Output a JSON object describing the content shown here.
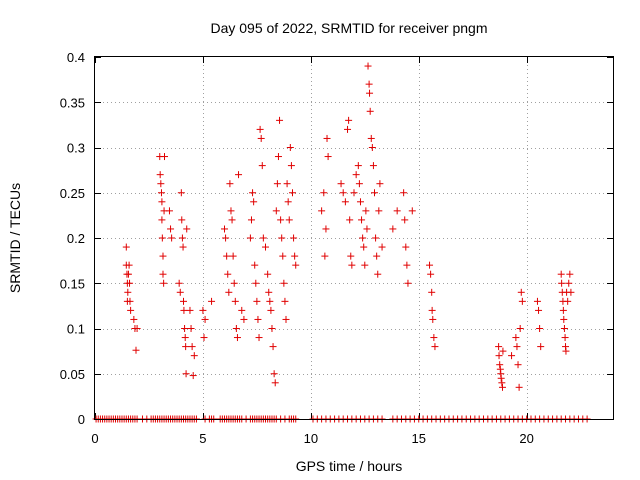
{
  "chart_data": {
    "type": "scatter",
    "title": "Day 095 of 2022, SRMTID for receiver pngm",
    "xlabel": "GPS time / hours",
    "ylabel": "SRMTID / TECUs",
    "xlim": [
      0,
      24
    ],
    "ylim": [
      0,
      0.4
    ],
    "xticks": [
      0,
      5,
      10,
      15,
      20
    ],
    "xtick_labels": [
      "0",
      "5",
      "10",
      "15",
      "20"
    ],
    "yticks": [
      0,
      0.05,
      0.1,
      0.15,
      0.2,
      0.25,
      0.3,
      0.35,
      0.4
    ],
    "ytick_labels": [
      "0",
      "0.05",
      "0.1",
      "0.15",
      "0.2",
      "0.25",
      "0.3",
      "0.35",
      "0.4"
    ],
    "grid": true,
    "marker": "plus",
    "color": "#e00000",
    "series": [
      {
        "name": "SRMTID",
        "points": [
          [
            1.45,
            0.19
          ],
          [
            1.45,
            0.17
          ],
          [
            1.48,
            0.16
          ],
          [
            1.5,
            0.15
          ],
          [
            1.5,
            0.13
          ],
          [
            1.52,
            0.14
          ],
          [
            1.55,
            0.16
          ],
          [
            1.58,
            0.17
          ],
          [
            1.6,
            0.15
          ],
          [
            1.62,
            0.13
          ],
          [
            1.65,
            0.12
          ],
          [
            1.8,
            0.11
          ],
          [
            1.85,
            0.1
          ],
          [
            1.9,
            0.076
          ],
          [
            1.95,
            0.1
          ],
          [
            3.0,
            0.29
          ],
          [
            3.02,
            0.27
          ],
          [
            3.05,
            0.26
          ],
          [
            3.08,
            0.25
          ],
          [
            3.1,
            0.24
          ],
          [
            3.1,
            0.22
          ],
          [
            3.12,
            0.2
          ],
          [
            3.15,
            0.18
          ],
          [
            3.15,
            0.16
          ],
          [
            3.18,
            0.15
          ],
          [
            3.2,
            0.23
          ],
          [
            3.22,
            0.29
          ],
          [
            3.45,
            0.23
          ],
          [
            3.5,
            0.21
          ],
          [
            3.55,
            0.2
          ],
          [
            3.9,
            0.15
          ],
          [
            3.95,
            0.14
          ],
          [
            4.0,
            0.25
          ],
          [
            4.02,
            0.22
          ],
          [
            4.05,
            0.2
          ],
          [
            4.08,
            0.19
          ],
          [
            4.1,
            0.13
          ],
          [
            4.12,
            0.12
          ],
          [
            4.15,
            0.1
          ],
          [
            4.18,
            0.09
          ],
          [
            4.2,
            0.08
          ],
          [
            4.22,
            0.05
          ],
          [
            4.25,
            0.21
          ],
          [
            4.4,
            0.12
          ],
          [
            4.45,
            0.1
          ],
          [
            4.5,
            0.08
          ],
          [
            4.55,
            0.048
          ],
          [
            4.6,
            0.07
          ],
          [
            5.0,
            0.12
          ],
          [
            5.05,
            0.09
          ],
          [
            5.1,
            0.11
          ],
          [
            5.4,
            0.13
          ],
          [
            6.0,
            0.21
          ],
          [
            6.05,
            0.2
          ],
          [
            6.1,
            0.18
          ],
          [
            6.15,
            0.16
          ],
          [
            6.2,
            0.14
          ],
          [
            6.25,
            0.26
          ],
          [
            6.3,
            0.23
          ],
          [
            6.35,
            0.22
          ],
          [
            6.4,
            0.18
          ],
          [
            6.45,
            0.15
          ],
          [
            6.5,
            0.13
          ],
          [
            6.55,
            0.1
          ],
          [
            6.6,
            0.09
          ],
          [
            6.65,
            0.27
          ],
          [
            6.8,
            0.12
          ],
          [
            6.9,
            0.11
          ],
          [
            7.2,
            0.2
          ],
          [
            7.25,
            0.22
          ],
          [
            7.3,
            0.25
          ],
          [
            7.35,
            0.24
          ],
          [
            7.4,
            0.17
          ],
          [
            7.45,
            0.15
          ],
          [
            7.5,
            0.13
          ],
          [
            7.55,
            0.11
          ],
          [
            7.6,
            0.09
          ],
          [
            7.65,
            0.32
          ],
          [
            7.7,
            0.31
          ],
          [
            7.75,
            0.28
          ],
          [
            7.8,
            0.2
          ],
          [
            7.9,
            0.19
          ],
          [
            8.0,
            0.16
          ],
          [
            8.05,
            0.14
          ],
          [
            8.1,
            0.13
          ],
          [
            8.15,
            0.12
          ],
          [
            8.2,
            0.1
          ],
          [
            8.25,
            0.08
          ],
          [
            8.3,
            0.05
          ],
          [
            8.35,
            0.04
          ],
          [
            8.4,
            0.23
          ],
          [
            8.45,
            0.26
          ],
          [
            8.5,
            0.29
          ],
          [
            8.55,
            0.33
          ],
          [
            8.6,
            0.22
          ],
          [
            8.65,
            0.2
          ],
          [
            8.7,
            0.18
          ],
          [
            8.75,
            0.15
          ],
          [
            8.8,
            0.13
          ],
          [
            8.85,
            0.11
          ],
          [
            8.9,
            0.26
          ],
          [
            8.95,
            0.24
          ],
          [
            9.0,
            0.22
          ],
          [
            9.05,
            0.3
          ],
          [
            9.1,
            0.28
          ],
          [
            9.15,
            0.25
          ],
          [
            9.2,
            0.2
          ],
          [
            9.25,
            0.18
          ],
          [
            9.3,
            0.17
          ],
          [
            10.5,
            0.23
          ],
          [
            10.6,
            0.25
          ],
          [
            10.65,
            0.18
          ],
          [
            10.7,
            0.21
          ],
          [
            10.75,
            0.31
          ],
          [
            10.8,
            0.29
          ],
          [
            11.4,
            0.26
          ],
          [
            11.5,
            0.25
          ],
          [
            11.6,
            0.24
          ],
          [
            11.7,
            0.32
          ],
          [
            11.75,
            0.33
          ],
          [
            11.8,
            0.22
          ],
          [
            11.85,
            0.18
          ],
          [
            11.9,
            0.17
          ],
          [
            12.0,
            0.25
          ],
          [
            12.1,
            0.27
          ],
          [
            12.2,
            0.28
          ],
          [
            12.25,
            0.26
          ],
          [
            12.3,
            0.24
          ],
          [
            12.35,
            0.22
          ],
          [
            12.4,
            0.2
          ],
          [
            12.45,
            0.19
          ],
          [
            12.5,
            0.17
          ],
          [
            12.55,
            0.23
          ],
          [
            12.6,
            0.21
          ],
          [
            12.65,
            0.39
          ],
          [
            12.7,
            0.37
          ],
          [
            12.72,
            0.36
          ],
          [
            12.75,
            0.34
          ],
          [
            12.8,
            0.31
          ],
          [
            12.85,
            0.3
          ],
          [
            12.9,
            0.28
          ],
          [
            12.95,
            0.25
          ],
          [
            13.0,
            0.2
          ],
          [
            13.05,
            0.18
          ],
          [
            13.1,
            0.16
          ],
          [
            13.15,
            0.23
          ],
          [
            13.2,
            0.26
          ],
          [
            13.3,
            0.19
          ],
          [
            13.8,
            0.21
          ],
          [
            14.0,
            0.23
          ],
          [
            14.3,
            0.25
          ],
          [
            14.35,
            0.22
          ],
          [
            14.4,
            0.19
          ],
          [
            14.45,
            0.17
          ],
          [
            14.5,
            0.15
          ],
          [
            14.7,
            0.23
          ],
          [
            15.5,
            0.17
          ],
          [
            15.55,
            0.16
          ],
          [
            15.6,
            0.14
          ],
          [
            15.62,
            0.12
          ],
          [
            15.65,
            0.11
          ],
          [
            15.7,
            0.09
          ],
          [
            15.75,
            0.08
          ],
          [
            18.7,
            0.08
          ],
          [
            18.72,
            0.07
          ],
          [
            18.75,
            0.06
          ],
          [
            18.78,
            0.055
          ],
          [
            18.8,
            0.05
          ],
          [
            18.82,
            0.045
          ],
          [
            18.85,
            0.04
          ],
          [
            18.88,
            0.035
          ],
          [
            18.9,
            0.075
          ],
          [
            19.3,
            0.07
          ],
          [
            19.5,
            0.09
          ],
          [
            19.55,
            0.08
          ],
          [
            19.6,
            0.06
          ],
          [
            19.65,
            0.035
          ],
          [
            19.7,
            0.1
          ],
          [
            19.75,
            0.14
          ],
          [
            19.8,
            0.13
          ],
          [
            20.5,
            0.13
          ],
          [
            20.55,
            0.12
          ],
          [
            20.6,
            0.1
          ],
          [
            20.65,
            0.08
          ],
          [
            21.6,
            0.16
          ],
          [
            21.62,
            0.15
          ],
          [
            21.65,
            0.14
          ],
          [
            21.68,
            0.13
          ],
          [
            21.7,
            0.12
          ],
          [
            21.72,
            0.11
          ],
          [
            21.75,
            0.1
          ],
          [
            21.78,
            0.09
          ],
          [
            21.8,
            0.08
          ],
          [
            21.82,
            0.075
          ],
          [
            21.85,
            0.14
          ],
          [
            21.9,
            0.13
          ],
          [
            21.95,
            0.15
          ],
          [
            22.0,
            0.16
          ],
          [
            22.05,
            0.14
          ]
        ],
        "zero_x": [
          0.05,
          0.15,
          0.25,
          0.35,
          0.45,
          0.55,
          0.65,
          0.75,
          0.85,
          0.95,
          1.05,
          1.15,
          1.25,
          1.35,
          1.45,
          1.55,
          1.65,
          1.75,
          1.85,
          1.95,
          2.2,
          2.4,
          2.6,
          2.7,
          2.8,
          2.9,
          3.0,
          3.1,
          3.2,
          3.3,
          3.4,
          3.5,
          3.6,
          3.7,
          3.8,
          3.9,
          4.0,
          4.1,
          4.2,
          4.3,
          4.4,
          4.5,
          4.6,
          4.7,
          5.1,
          5.3,
          5.4,
          5.5,
          5.8,
          5.9,
          6.0,
          6.1,
          6.2,
          6.3,
          6.4,
          6.5,
          6.6,
          6.7,
          6.8,
          7.0,
          7.2,
          7.3,
          7.4,
          7.5,
          7.6,
          7.7,
          7.8,
          7.9,
          8.0,
          8.1,
          8.2,
          8.3,
          8.4,
          8.6,
          8.8,
          9.0,
          9.1,
          9.2,
          9.3,
          10.1,
          10.3,
          10.5,
          10.7,
          10.9,
          11.1,
          11.3,
          11.5,
          11.7,
          11.9,
          12.1,
          12.3,
          12.5,
          12.7,
          12.9,
          13.1,
          13.3,
          13.8,
          14.0,
          14.2,
          14.4,
          14.6,
          14.8,
          15.0,
          15.2,
          15.4,
          15.6,
          15.8,
          16.0,
          16.2,
          16.4,
          16.6,
          16.8,
          17.0,
          17.2,
          17.4,
          17.6,
          17.8,
          18.0,
          18.2,
          18.4,
          18.6,
          18.8,
          19.0,
          19.2,
          19.4,
          19.6,
          19.8,
          20.0,
          20.2,
          20.4,
          20.6,
          20.8,
          21.0,
          21.2,
          21.4,
          21.6,
          21.8,
          22.0,
          22.2,
          22.4,
          22.6,
          22.8
        ]
      }
    ]
  }
}
